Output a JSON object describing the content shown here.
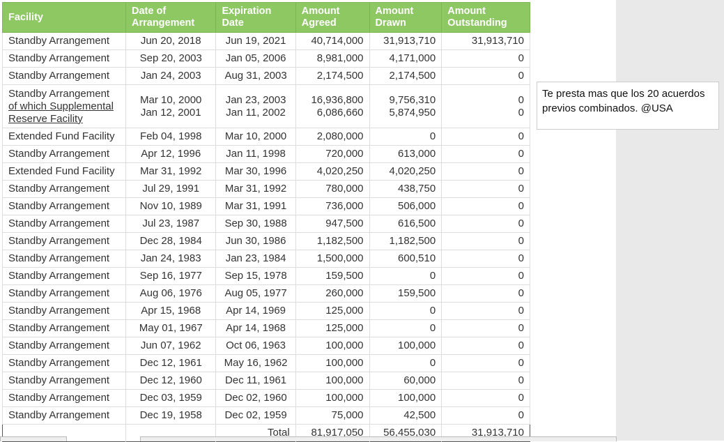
{
  "headers": [
    "Facility",
    "Date of Arrangement",
    "Expiration Date",
    "Amount Agreed",
    "Amount Drawn",
    "Amount Outstanding"
  ],
  "rows": [
    [
      "Standby Arrangement",
      "Jun 20, 2018",
      "Jun 19, 2021",
      "40,714,000",
      "31,913,710",
      "31,913,710"
    ],
    [
      "Standby Arrangement",
      "Sep 20, 2003",
      "Jan 05, 2006",
      "8,981,000",
      "4,171,000",
      "0"
    ],
    [
      "Standby Arrangement",
      "Jan 24, 2003",
      "Aug 31, 2003",
      "2,174,500",
      "2,174,500",
      "0"
    ]
  ],
  "multi": {
    "facility": "Standby Arrangement",
    "sub_facility": "of which Supplemental Reserve Facility",
    "date1": "Mar 10, 2000",
    "date2": "Jan 12, 2001",
    "exp1": "Jan 23, 2003",
    "exp2": "Jan 11, 2002",
    "agreed1": "16,936,800",
    "agreed2": "6,086,660",
    "drawn1": "9,756,310",
    "drawn2": "5,874,950",
    "out1": "0",
    "out2": "0"
  },
  "rows2": [
    [
      "Extended Fund Facility",
      "Feb 04, 1998",
      "Mar 10, 2000",
      "2,080,000",
      "0",
      "0"
    ],
    [
      "Standby Arrangement",
      "Apr 12, 1996",
      "Jan 11, 1998",
      "720,000",
      "613,000",
      "0"
    ],
    [
      "Extended Fund Facility",
      "Mar 31, 1992",
      "Mar 30, 1996",
      "4,020,250",
      "4,020,250",
      "0"
    ],
    [
      "Standby Arrangement",
      "Jul 29, 1991",
      "Mar 31, 1992",
      "780,000",
      "438,750",
      "0"
    ],
    [
      "Standby Arrangement",
      "Nov 10, 1989",
      "Mar 31, 1991",
      "736,000",
      "506,000",
      "0"
    ],
    [
      "Standby Arrangement",
      "Jul 23, 1987",
      "Sep 30, 1988",
      "947,500",
      "616,500",
      "0"
    ],
    [
      "Standby Arrangement",
      "Dec 28, 1984",
      "Jun 30, 1986",
      "1,182,500",
      "1,182,500",
      "0"
    ],
    [
      "Standby Arrangement",
      "Jan 24, 1983",
      "Jan 23, 1984",
      "1,500,000",
      "600,510",
      "0"
    ],
    [
      "Standby Arrangement",
      "Sep 16, 1977",
      "Sep 15, 1978",
      "159,500",
      "0",
      "0"
    ],
    [
      "Standby Arrangement",
      "Aug 06, 1976",
      "Aug 05, 1977",
      "260,000",
      "159,500",
      "0"
    ],
    [
      "Standby Arrangement",
      "Apr 15, 1968",
      "Apr 14, 1969",
      "125,000",
      "0",
      "0"
    ],
    [
      "Standby Arrangement",
      "May 01, 1967",
      "Apr 14, 1968",
      "125,000",
      "0",
      "0"
    ],
    [
      "Standby Arrangement",
      "Jun 07, 1962",
      "Oct 06, 1963",
      "100,000",
      "100,000",
      "0"
    ],
    [
      "Standby Arrangement",
      "Dec 12, 1961",
      "May 16, 1962",
      "100,000",
      "0",
      "0"
    ],
    [
      "Standby Arrangement",
      "Dec 12, 1960",
      "Dec 11, 1961",
      "100,000",
      "60,000",
      "0"
    ],
    [
      "Standby Arrangement",
      "Dec 03, 1959",
      "Dec 02, 1960",
      "100,000",
      "100,000",
      "0"
    ],
    [
      "Standby Arrangement",
      "Dec 19, 1958",
      "Dec 02, 1959",
      "75,000",
      "42,500",
      "0"
    ]
  ],
  "total": {
    "label": "Total",
    "agreed": "81,917,050",
    "drawn": "56,455,030",
    "outstanding": "31,913,710"
  },
  "note": "Te presta mas que los 20 acuerdos previos combinados. @USA"
}
